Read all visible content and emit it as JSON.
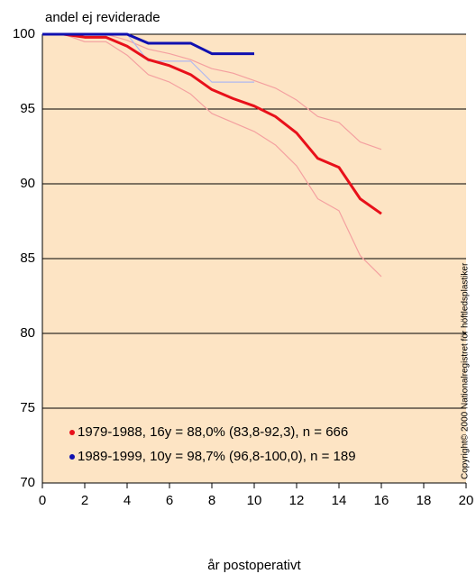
{
  "chart_data": {
    "type": "line",
    "title": "andel ej reviderade",
    "x_label": "år postoperativt",
    "annotation": "Copyright© 2000 Nationalregistret för höftledsplastiker",
    "xlim": [
      0,
      20
    ],
    "xticks": [
      0,
      2,
      4,
      6,
      8,
      10,
      12,
      14,
      16,
      18,
      20
    ],
    "ylim": [
      70,
      100
    ],
    "yticks": [
      70,
      75,
      80,
      85,
      90,
      95,
      100
    ],
    "grid": true,
    "background": "#fde4c4",
    "series": [
      {
        "color": "#f4a0a0",
        "width": 1.2,
        "x": [
          0,
          1,
          2,
          3,
          4,
          5,
          6,
          7,
          8,
          9,
          10,
          11,
          12,
          13,
          14,
          15,
          16
        ],
        "values": [
          100,
          100,
          100,
          100,
          99.6,
          99.0,
          98.7,
          98.3,
          97.7,
          97.4,
          96.9,
          96.4,
          95.6,
          94.5,
          94.1,
          92.8,
          92.3
        ]
      },
      {
        "color": "#f4a0a0",
        "width": 1.2,
        "x": [
          0,
          1,
          2,
          3,
          4,
          5,
          6,
          7,
          8,
          9,
          10,
          11,
          12,
          13,
          14,
          15,
          16
        ],
        "values": [
          100,
          100,
          99.5,
          99.5,
          98.6,
          97.3,
          96.8,
          96.0,
          94.7,
          94.1,
          93.5,
          92.6,
          91.2,
          89.0,
          88.2,
          85.2,
          83.8
        ]
      },
      {
        "color": "#b0b8f0",
        "width": 1.2,
        "x": [
          0,
          1,
          2,
          3,
          4,
          5,
          6,
          7,
          8,
          9,
          10
        ],
        "values": [
          100,
          100,
          100,
          100,
          100,
          98.2,
          98.2,
          98.2,
          96.8,
          96.8,
          96.8
        ]
      },
      {
        "name": "1979-1988, 16y = 88,0% (83,8-92,3),   n = 666",
        "color": "#e8101a",
        "width": 3,
        "x": [
          0,
          1,
          2,
          3,
          4,
          5,
          6,
          7,
          8,
          9,
          10,
          11,
          12,
          13,
          14,
          15,
          16
        ],
        "values": [
          100,
          100,
          99.8,
          99.8,
          99.2,
          98.3,
          97.9,
          97.3,
          96.3,
          95.7,
          95.2,
          94.5,
          93.4,
          91.7,
          91.1,
          89.0,
          88.0
        ]
      },
      {
        "name": "1989-1999, 10y = 98,7% (96,8-100,0), n = 189",
        "color": "#1010b0",
        "width": 3,
        "x": [
          0,
          1,
          2,
          3,
          4,
          5,
          6,
          7,
          8,
          9,
          10
        ],
        "values": [
          100,
          100,
          100,
          100,
          100,
          99.4,
          99.4,
          99.4,
          98.7,
          98.7,
          98.7
        ]
      }
    ]
  }
}
